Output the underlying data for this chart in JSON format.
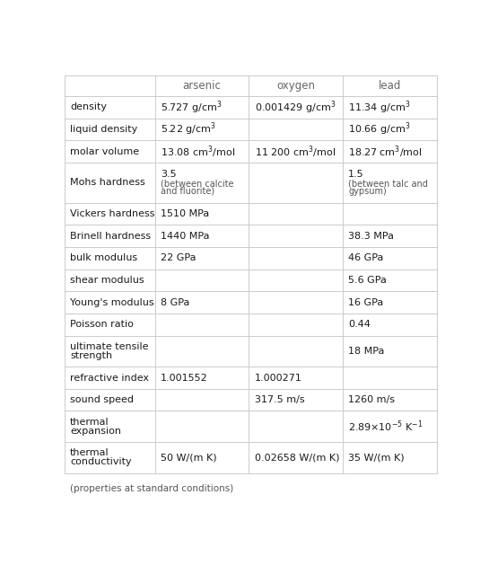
{
  "headers": [
    "",
    "arsenic",
    "oxygen",
    "lead"
  ],
  "rows": [
    {
      "property": "density",
      "arsenic": "5.727 g/cm$^3$",
      "oxygen": "0.001429 g/cm$^3$",
      "lead": "11.34 g/cm$^3$"
    },
    {
      "property": "liquid density",
      "arsenic": "5.22 g/cm$^3$",
      "oxygen": "",
      "lead": "10.66 g/cm$^3$"
    },
    {
      "property": "molar volume",
      "arsenic": "13.08 cm$^3$/mol",
      "oxygen": "11 200 cm$^3$/mol",
      "lead": "18.27 cm$^3$/mol"
    },
    {
      "property": "Mohs hardness",
      "arsenic": "3.5\n(between calcite\nand fluorite)",
      "oxygen": "",
      "lead": "1.5\n(between talc and\ngypsum)",
      "tall": true
    },
    {
      "property": "Vickers hardness",
      "arsenic": "1510 MPa",
      "oxygen": "",
      "lead": ""
    },
    {
      "property": "Brinell hardness",
      "arsenic": "1440 MPa",
      "oxygen": "",
      "lead": "38.3 MPa"
    },
    {
      "property": "bulk modulus",
      "arsenic": "22 GPa",
      "oxygen": "",
      "lead": "46 GPa"
    },
    {
      "property": "shear modulus",
      "arsenic": "",
      "oxygen": "",
      "lead": "5.6 GPa"
    },
    {
      "property": "Young's modulus",
      "arsenic": "8 GPa",
      "oxygen": "",
      "lead": "16 GPa"
    },
    {
      "property": "Poisson ratio",
      "arsenic": "",
      "oxygen": "",
      "lead": "0.44"
    },
    {
      "property": "ultimate tensile\nstrength",
      "arsenic": "",
      "oxygen": "",
      "lead": "18 MPa",
      "tall": true
    },
    {
      "property": "refractive index",
      "arsenic": "1.001552",
      "oxygen": "1.000271",
      "lead": ""
    },
    {
      "property": "sound speed",
      "arsenic": "",
      "oxygen": "317.5 m/s",
      "lead": "1260 m/s"
    },
    {
      "property": "thermal\nexpansion",
      "arsenic": "",
      "oxygen": "",
      "lead": "2.89×10$^{-5}$ K$^{-1}$",
      "tall": true
    },
    {
      "property": "thermal\nconductivity",
      "arsenic": "50 W/(m K)",
      "oxygen": "0.02658 W/(m K)",
      "lead": "35 W/(m K)",
      "tall": true
    }
  ],
  "footer": "(properties at standard conditions)",
  "border_color": "#cccccc",
  "text_color": "#1a1a1a",
  "header_text_color": "#666666",
  "subtext_color": "#555555",
  "bg_color": "#ffffff",
  "main_fontsize": 8.0,
  "header_fontsize": 8.5,
  "small_fontsize": 7.0,
  "footer_fontsize": 7.5
}
